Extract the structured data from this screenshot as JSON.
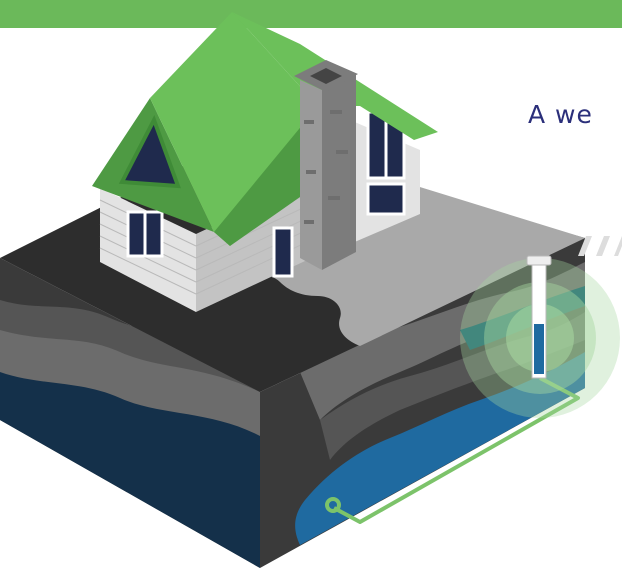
{
  "caption": {
    "text": "A we"
  },
  "colors": {
    "top_band": "#6bb95a",
    "roof": "#6cc05a",
    "roof_dark": "#4e9a43",
    "roof_trim": "#3f8b37",
    "siding": "#e3e3e3",
    "siding_shadow": "#c3c3c3",
    "window_glass": "#1f2a4d",
    "chimney": "#9a9a9a",
    "chimney_dark": "#7c7c7c",
    "ground_surface": "#a9a9a9",
    "ground_dark": "#2d2d2d",
    "soil_layer_1": "#3a3a3a",
    "soil_layer_2": "#555555",
    "soil_layer_3": "#6c6c6c",
    "water_deep": "#1f6aa0",
    "water_dark": "#14304a",
    "water_layer": "#0d5d6b",
    "pipe": "#7cc36a",
    "well_glow": "#a7d8a0",
    "caption_text": "#2b2f7a"
  },
  "icons": {
    "house": "house-icon",
    "chimney": "chimney-icon",
    "well": "well-pipe-icon",
    "pump": "pump-icon",
    "water_line": "water-line-icon"
  }
}
